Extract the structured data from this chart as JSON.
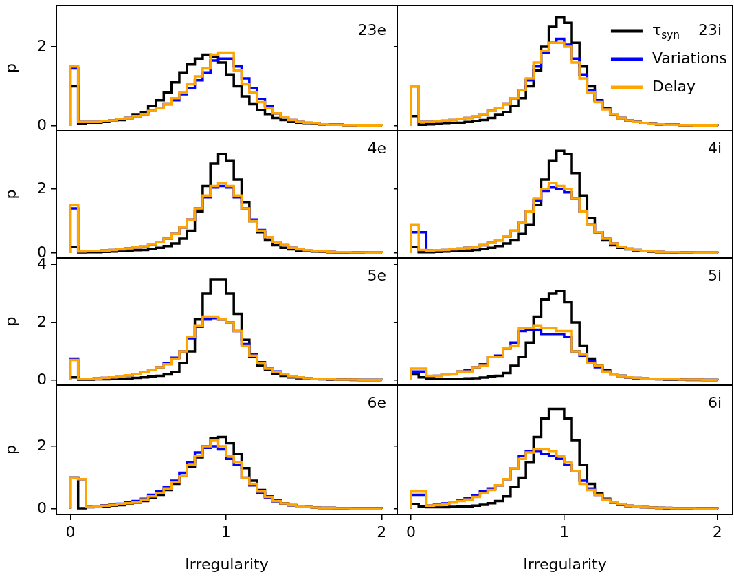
{
  "chart_data": [
    {
      "type": "histogram",
      "annotations": [
        "23e"
      ],
      "ylabel": "p",
      "tick_labels": "y",
      "legend": false,
      "xlim": [
        -0.09,
        2.1
      ],
      "ylim": [
        -0.12,
        3.04
      ],
      "yticks": [
        0,
        2
      ],
      "bins": [
        0,
        0.05,
        0.1,
        0.15,
        0.2,
        0.25,
        0.3,
        0.35,
        0.4,
        0.45,
        0.5,
        0.55,
        0.6,
        0.65,
        0.7,
        0.75,
        0.8,
        0.85,
        0.9,
        0.95,
        1,
        1.05,
        1.1,
        1.15,
        1.2,
        1.25,
        1.3,
        1.35,
        1.4,
        1.45,
        1.5,
        1.55,
        1.6,
        1.65,
        1.7,
        1.75,
        1.8,
        1.85,
        1.9,
        1.95,
        2
      ],
      "series": [
        {
          "color": "#000000",
          "values": [
            1.0,
            0.05,
            0.07,
            0.08,
            0.1,
            0.12,
            0.15,
            0.2,
            0.28,
            0.35,
            0.5,
            0.65,
            0.85,
            1.1,
            1.35,
            1.55,
            1.7,
            1.8,
            1.75,
            1.6,
            1.3,
            1.0,
            0.75,
            0.55,
            0.4,
            0.3,
            0.2,
            0.15,
            0.1,
            0.08,
            0.06,
            0.05,
            0.04,
            0.03,
            0.03,
            0.02,
            0.02,
            0.01,
            0.01,
            0.01
          ]
        },
        {
          "color": "#0000ff",
          "values": [
            1.45,
            0.1,
            0.1,
            0.1,
            0.12,
            0.14,
            0.17,
            0.2,
            0.25,
            0.3,
            0.38,
            0.45,
            0.55,
            0.65,
            0.8,
            0.95,
            1.15,
            1.35,
            1.65,
            1.7,
            1.7,
            1.5,
            1.2,
            0.95,
            0.68,
            0.5,
            0.32,
            0.22,
            0.15,
            0.1,
            0.08,
            0.06,
            0.04,
            0.03,
            0.03,
            0.02,
            0.02,
            0.01,
            0.01,
            0.01
          ]
        },
        {
          "color": "#ffa500",
          "values": [
            1.5,
            0.1,
            0.1,
            0.1,
            0.12,
            0.14,
            0.17,
            0.2,
            0.25,
            0.3,
            0.38,
            0.45,
            0.55,
            0.7,
            0.85,
            1.05,
            1.25,
            1.45,
            1.8,
            1.85,
            1.85,
            1.4,
            1.05,
            0.85,
            0.6,
            0.45,
            0.32,
            0.22,
            0.15,
            0.1,
            0.08,
            0.06,
            0.04,
            0.03,
            0.03,
            0.02,
            0.02,
            0.01,
            0.01,
            0.01
          ]
        }
      ]
    },
    {
      "type": "histogram",
      "annotations": [
        "23i"
      ],
      "tick_labels": false,
      "legend": "top right",
      "xlim": [
        -0.09,
        2.1
      ],
      "ylim": [
        -0.12,
        3.04
      ],
      "yticks": [
        0,
        2
      ],
      "bins": [
        0,
        0.05,
        0.1,
        0.15,
        0.2,
        0.25,
        0.3,
        0.35,
        0.4,
        0.45,
        0.5,
        0.55,
        0.6,
        0.65,
        0.7,
        0.75,
        0.8,
        0.85,
        0.9,
        0.95,
        1,
        1.05,
        1.1,
        1.15,
        1.2,
        1.25,
        1.3,
        1.35,
        1.4,
        1.45,
        1.5,
        1.55,
        1.6,
        1.65,
        1.7,
        1.75,
        1.8,
        1.85,
        1.9,
        1.95,
        2
      ],
      "series": [
        {
          "name": "τ$_{syn}$",
          "color": "#000000",
          "values": [
            0.25,
            0.03,
            0.04,
            0.05,
            0.06,
            0.07,
            0.08,
            0.1,
            0.12,
            0.15,
            0.2,
            0.28,
            0.35,
            0.5,
            0.7,
            1.0,
            1.4,
            2.0,
            2.5,
            2.75,
            2.6,
            2.1,
            1.5,
            1.0,
            0.65,
            0.45,
            0.3,
            0.2,
            0.14,
            0.1,
            0.07,
            0.05,
            0.04,
            0.03,
            0.03,
            0.02,
            0.02,
            0.01,
            0.01,
            0.01
          ]
        },
        {
          "name": "Variations",
          "color": "#0000ff",
          "values": [
            1.0,
            0.1,
            0.1,
            0.11,
            0.13,
            0.15,
            0.17,
            0.2,
            0.25,
            0.3,
            0.38,
            0.45,
            0.55,
            0.7,
            0.9,
            1.15,
            1.5,
            1.85,
            2.1,
            2.2,
            2.05,
            1.7,
            1.3,
            0.9,
            0.62,
            0.43,
            0.3,
            0.2,
            0.14,
            0.1,
            0.07,
            0.05,
            0.04,
            0.03,
            0.03,
            0.02,
            0.02,
            0.01,
            0.01,
            0.01
          ]
        },
        {
          "name": "Delay",
          "color": "#ffa500",
          "values": [
            1.0,
            0.1,
            0.1,
            0.11,
            0.13,
            0.15,
            0.17,
            0.2,
            0.25,
            0.3,
            0.38,
            0.45,
            0.55,
            0.7,
            0.9,
            1.2,
            1.6,
            1.9,
            2.1,
            2.1,
            2.0,
            1.6,
            1.2,
            0.85,
            0.6,
            0.42,
            0.3,
            0.2,
            0.14,
            0.1,
            0.07,
            0.05,
            0.04,
            0.03,
            0.03,
            0.02,
            0.02,
            0.01,
            0.01,
            0.01
          ]
        }
      ]
    },
    {
      "type": "histogram",
      "annotations": [
        "4e"
      ],
      "ylabel": "p",
      "tick_labels": "y",
      "legend": false,
      "xlim": [
        -0.09,
        2.1
      ],
      "ylim": [
        -0.15,
        3.83
      ],
      "yticks": [
        0,
        2
      ],
      "bins": [
        0,
        0.05,
        0.1,
        0.15,
        0.2,
        0.25,
        0.3,
        0.35,
        0.4,
        0.45,
        0.5,
        0.55,
        0.6,
        0.65,
        0.7,
        0.75,
        0.8,
        0.85,
        0.9,
        0.95,
        1,
        1.05,
        1.1,
        1.15,
        1.2,
        1.25,
        1.3,
        1.35,
        1.4,
        1.45,
        1.5,
        1.55,
        1.6,
        1.65,
        1.7,
        1.75,
        1.8,
        1.85,
        1.9,
        1.95,
        2
      ],
      "series": [
        {
          "color": "#000000",
          "values": [
            0.2,
            0.02,
            0.03,
            0.03,
            0.04,
            0.05,
            0.06,
            0.07,
            0.09,
            0.1,
            0.13,
            0.17,
            0.22,
            0.3,
            0.45,
            0.7,
            1.3,
            2.1,
            2.8,
            3.1,
            2.9,
            2.3,
            1.6,
            1.0,
            0.65,
            0.4,
            0.25,
            0.17,
            0.12,
            0.08,
            0.06,
            0.05,
            0.04,
            0.03,
            0.02,
            0.02,
            0.02,
            0.01,
            0.01,
            0.01
          ]
        },
        {
          "color": "#0000ff",
          "values": [
            1.4,
            0.05,
            0.06,
            0.07,
            0.08,
            0.1,
            0.12,
            0.15,
            0.18,
            0.22,
            0.28,
            0.35,
            0.45,
            0.6,
            0.8,
            1.05,
            1.4,
            1.75,
            2.05,
            2.1,
            2.05,
            1.75,
            1.4,
            1.05,
            0.72,
            0.5,
            0.35,
            0.25,
            0.17,
            0.12,
            0.09,
            0.07,
            0.05,
            0.04,
            0.03,
            0.03,
            0.02,
            0.02,
            0.01,
            0.01
          ]
        },
        {
          "color": "#ffa500",
          "values": [
            1.5,
            0.05,
            0.06,
            0.07,
            0.08,
            0.1,
            0.12,
            0.15,
            0.18,
            0.22,
            0.28,
            0.35,
            0.45,
            0.6,
            0.8,
            1.05,
            1.4,
            1.8,
            2.1,
            2.2,
            2.1,
            1.8,
            1.4,
            1.0,
            0.7,
            0.5,
            0.35,
            0.25,
            0.17,
            0.12,
            0.09,
            0.07,
            0.05,
            0.04,
            0.03,
            0.03,
            0.02,
            0.02,
            0.01,
            0.01
          ]
        }
      ]
    },
    {
      "type": "histogram",
      "annotations": [
        "4i"
      ],
      "tick_labels": false,
      "legend": false,
      "xlim": [
        -0.09,
        2.1
      ],
      "ylim": [
        -0.15,
        3.83
      ],
      "yticks": [
        0,
        2
      ],
      "bins": [
        0,
        0.05,
        0.1,
        0.15,
        0.2,
        0.25,
        0.3,
        0.35,
        0.4,
        0.45,
        0.5,
        0.55,
        0.6,
        0.65,
        0.7,
        0.75,
        0.8,
        0.85,
        0.9,
        0.95,
        1,
        1.05,
        1.1,
        1.15,
        1.2,
        1.25,
        1.3,
        1.35,
        1.4,
        1.45,
        1.5,
        1.55,
        1.6,
        1.65,
        1.7,
        1.75,
        1.8,
        1.85,
        1.9,
        1.95,
        2
      ],
      "series": [
        {
          "color": "#000000",
          "values": [
            0.2,
            0.03,
            0.03,
            0.04,
            0.05,
            0.06,
            0.07,
            0.08,
            0.1,
            0.13,
            0.17,
            0.22,
            0.3,
            0.4,
            0.6,
            0.9,
            1.5,
            2.3,
            2.9,
            3.2,
            3.1,
            2.5,
            1.8,
            1.1,
            0.65,
            0.4,
            0.25,
            0.17,
            0.12,
            0.08,
            0.06,
            0.04,
            0.03,
            0.03,
            0.02,
            0.02,
            0.01,
            0.01,
            0.01,
            0.01
          ]
        },
        {
          "color": "#0000ff",
          "values": [
            0.65,
            0.65,
            0.08,
            0.09,
            0.1,
            0.12,
            0.14,
            0.17,
            0.2,
            0.25,
            0.32,
            0.4,
            0.52,
            0.7,
            0.95,
            1.3,
            1.65,
            1.95,
            2.05,
            2.0,
            1.9,
            1.7,
            1.3,
            0.9,
            0.65,
            0.45,
            0.3,
            0.2,
            0.14,
            0.1,
            0.07,
            0.05,
            0.04,
            0.03,
            0.03,
            0.02,
            0.02,
            0.01,
            0.01,
            0.01
          ]
        },
        {
          "color": "#ffa500",
          "values": [
            0.9,
            0.1,
            0.08,
            0.09,
            0.1,
            0.12,
            0.14,
            0.17,
            0.2,
            0.25,
            0.32,
            0.4,
            0.52,
            0.7,
            0.95,
            1.3,
            1.7,
            2.0,
            2.2,
            2.1,
            2.0,
            1.7,
            1.3,
            0.9,
            0.65,
            0.45,
            0.3,
            0.2,
            0.14,
            0.1,
            0.07,
            0.05,
            0.04,
            0.03,
            0.03,
            0.02,
            0.02,
            0.01,
            0.01,
            0.01
          ]
        }
      ]
    },
    {
      "type": "histogram",
      "annotations": [
        "5e"
      ],
      "ylabel": "p",
      "tick_labels": "y",
      "legend": false,
      "xlim": [
        -0.09,
        2.1
      ],
      "ylim": [
        -0.17,
        4.24
      ],
      "yticks": [
        0,
        2,
        4
      ],
      "bins": [
        0,
        0.05,
        0.1,
        0.15,
        0.2,
        0.25,
        0.3,
        0.35,
        0.4,
        0.45,
        0.5,
        0.55,
        0.6,
        0.65,
        0.7,
        0.75,
        0.8,
        0.85,
        0.9,
        0.95,
        1,
        1.05,
        1.1,
        1.15,
        1.2,
        1.25,
        1.3,
        1.35,
        1.4,
        1.45,
        1.5,
        1.55,
        1.6,
        1.65,
        1.7,
        1.75,
        1.8,
        1.85,
        1.9,
        1.95,
        2
      ],
      "series": [
        {
          "color": "#000000",
          "values": [
            0.1,
            0.02,
            0.02,
            0.03,
            0.03,
            0.04,
            0.05,
            0.06,
            0.08,
            0.1,
            0.12,
            0.15,
            0.2,
            0.28,
            0.6,
            1.0,
            2.1,
            3.0,
            3.5,
            3.5,
            3.0,
            2.3,
            1.4,
            0.8,
            0.5,
            0.35,
            0.22,
            0.15,
            0.1,
            0.07,
            0.05,
            0.04,
            0.03,
            0.02,
            0.02,
            0.02,
            0.01,
            0.01,
            0.01,
            0.01
          ]
        },
        {
          "color": "#0000ff",
          "values": [
            0.75,
            0.05,
            0.05,
            0.06,
            0.08,
            0.1,
            0.13,
            0.17,
            0.22,
            0.28,
            0.35,
            0.45,
            0.58,
            0.78,
            1.0,
            1.45,
            1.85,
            2.1,
            2.15,
            2.1,
            2.0,
            1.7,
            1.25,
            0.9,
            0.62,
            0.42,
            0.3,
            0.2,
            0.14,
            0.1,
            0.07,
            0.05,
            0.04,
            0.03,
            0.02,
            0.02,
            0.02,
            0.01,
            0.01,
            0.01
          ]
        },
        {
          "color": "#ffa500",
          "values": [
            0.7,
            0.05,
            0.05,
            0.06,
            0.08,
            0.1,
            0.13,
            0.17,
            0.22,
            0.28,
            0.35,
            0.45,
            0.55,
            0.75,
            1.0,
            1.5,
            1.9,
            2.2,
            2.2,
            2.1,
            2.0,
            1.7,
            1.2,
            0.85,
            0.6,
            0.4,
            0.28,
            0.2,
            0.14,
            0.1,
            0.07,
            0.05,
            0.04,
            0.03,
            0.02,
            0.02,
            0.02,
            0.01,
            0.01,
            0.01
          ]
        }
      ]
    },
    {
      "type": "histogram",
      "annotations": [
        "5i"
      ],
      "tick_labels": false,
      "legend": false,
      "xlim": [
        -0.09,
        2.1
      ],
      "ylim": [
        -0.17,
        4.24
      ],
      "yticks": [
        0,
        2,
        4
      ],
      "bins": [
        0,
        0.05,
        0.1,
        0.15,
        0.2,
        0.25,
        0.3,
        0.35,
        0.4,
        0.45,
        0.5,
        0.55,
        0.6,
        0.65,
        0.7,
        0.75,
        0.8,
        0.85,
        0.9,
        0.95,
        1,
        1.05,
        1.1,
        1.15,
        1.2,
        1.25,
        1.3,
        1.35,
        1.4,
        1.45,
        1.5,
        1.55,
        1.6,
        1.65,
        1.7,
        1.75,
        1.8,
        1.85,
        1.9,
        1.95,
        2
      ],
      "series": [
        {
          "color": "#000000",
          "values": [
            0.2,
            0.1,
            0.05,
            0.04,
            0.04,
            0.04,
            0.05,
            0.06,
            0.07,
            0.09,
            0.12,
            0.15,
            0.25,
            0.5,
            0.8,
            1.3,
            2.2,
            2.8,
            3.0,
            3.1,
            2.7,
            2.0,
            1.2,
            0.75,
            0.5,
            0.35,
            0.22,
            0.15,
            0.1,
            0.07,
            0.05,
            0.04,
            0.03,
            0.02,
            0.02,
            0.02,
            0.01,
            0.01,
            0.01,
            0.01
          ]
        },
        {
          "color": "#0000ff",
          "values": [
            0.3,
            0.3,
            0.12,
            0.15,
            0.2,
            0.22,
            0.3,
            0.35,
            0.45,
            0.55,
            0.8,
            0.85,
            1.1,
            1.3,
            1.7,
            1.75,
            1.75,
            1.6,
            1.6,
            1.6,
            1.5,
            1.0,
            0.85,
            0.65,
            0.45,
            0.3,
            0.2,
            0.15,
            0.1,
            0.08,
            0.06,
            0.05,
            0.04,
            0.03,
            0.03,
            0.02,
            0.02,
            0.02,
            0.01,
            0.01
          ]
        },
        {
          "color": "#ffa500",
          "values": [
            0.4,
            0.4,
            0.15,
            0.15,
            0.2,
            0.2,
            0.3,
            0.3,
            0.45,
            0.5,
            0.8,
            0.8,
            1.1,
            1.2,
            1.8,
            1.8,
            1.9,
            1.8,
            1.8,
            1.7,
            1.7,
            1.0,
            0.9,
            0.6,
            0.5,
            0.3,
            0.2,
            0.15,
            0.1,
            0.08,
            0.06,
            0.05,
            0.04,
            0.03,
            0.03,
            0.02,
            0.02,
            0.02,
            0.01,
            0.01
          ]
        }
      ]
    },
    {
      "type": "histogram",
      "annotations": [
        "6e"
      ],
      "ylabel": "p",
      "xlabel": "Irregularity",
      "legend": false,
      "xlim": [
        -0.09,
        2.1
      ],
      "xticks": [
        0,
        1,
        2
      ],
      "ylim": [
        -0.18,
        3.96
      ],
      "yticks": [
        0,
        2
      ],
      "bins": [
        0,
        0.05,
        0.1,
        0.15,
        0.2,
        0.25,
        0.3,
        0.35,
        0.4,
        0.45,
        0.5,
        0.55,
        0.6,
        0.65,
        0.7,
        0.75,
        0.8,
        0.85,
        0.9,
        0.95,
        1,
        1.05,
        1.1,
        1.15,
        1.2,
        1.25,
        1.3,
        1.35,
        1.4,
        1.45,
        1.5,
        1.55,
        1.6,
        1.65,
        1.7,
        1.75,
        1.8,
        1.85,
        1.9,
        1.95,
        2
      ],
      "series": [
        {
          "color": "#000000",
          "values": [
            1.0,
            0.02,
            0.05,
            0.06,
            0.08,
            0.1,
            0.12,
            0.15,
            0.2,
            0.25,
            0.35,
            0.45,
            0.6,
            0.8,
            1.05,
            1.35,
            1.65,
            2.0,
            2.25,
            2.3,
            2.1,
            1.75,
            1.3,
            0.9,
            0.6,
            0.4,
            0.27,
            0.18,
            0.12,
            0.08,
            0.06,
            0.04,
            0.03,
            0.03,
            0.02,
            0.02,
            0.01,
            0.01,
            0.01,
            0.01
          ]
        },
        {
          "color": "#0000ff",
          "values": [
            1.0,
            0.95,
            0.07,
            0.09,
            0.11,
            0.13,
            0.16,
            0.2,
            0.25,
            0.32,
            0.45,
            0.55,
            0.7,
            0.9,
            1.15,
            1.5,
            1.8,
            1.95,
            2.0,
            1.9,
            1.6,
            1.4,
            1.0,
            0.75,
            0.5,
            0.35,
            0.24,
            0.16,
            0.11,
            0.08,
            0.06,
            0.04,
            0.03,
            0.03,
            0.02,
            0.02,
            0.01,
            0.01,
            0.01,
            0.01
          ]
        },
        {
          "color": "#ffa500",
          "values": [
            1.0,
            0.95,
            0.06,
            0.08,
            0.1,
            0.12,
            0.15,
            0.18,
            0.22,
            0.3,
            0.4,
            0.5,
            0.65,
            0.85,
            1.05,
            1.4,
            1.7,
            2.0,
            2.2,
            2.0,
            1.7,
            1.5,
            1.0,
            0.8,
            0.55,
            0.38,
            0.25,
            0.17,
            0.12,
            0.08,
            0.06,
            0.04,
            0.03,
            0.03,
            0.02,
            0.02,
            0.01,
            0.01,
            0.01,
            0.01
          ]
        }
      ]
    },
    {
      "type": "histogram",
      "annotations": [
        "6i"
      ],
      "xlabel": "Irregularity",
      "tick_labels": "x",
      "legend": false,
      "xlim": [
        -0.09,
        2.1
      ],
      "xticks": [
        0,
        1,
        2
      ],
      "ylim": [
        -0.18,
        3.96
      ],
      "yticks": [
        0,
        2
      ],
      "bins": [
        0,
        0.05,
        0.1,
        0.15,
        0.2,
        0.25,
        0.3,
        0.35,
        0.4,
        0.45,
        0.5,
        0.55,
        0.6,
        0.65,
        0.7,
        0.75,
        0.8,
        0.85,
        0.9,
        0.95,
        1,
        1.05,
        1.1,
        1.15,
        1.2,
        1.25,
        1.3,
        1.35,
        1.4,
        1.45,
        1.5,
        1.55,
        1.6,
        1.65,
        1.7,
        1.75,
        1.8,
        1.85,
        1.9,
        1.95,
        2
      ],
      "series": [
        {
          "color": "#000000",
          "values": [
            0.15,
            0.08,
            0.05,
            0.05,
            0.05,
            0.06,
            0.07,
            0.08,
            0.1,
            0.13,
            0.18,
            0.25,
            0.4,
            0.7,
            1.0,
            1.5,
            2.3,
            2.9,
            3.2,
            3.2,
            2.9,
            2.2,
            1.4,
            0.8,
            0.5,
            0.32,
            0.2,
            0.13,
            0.09,
            0.06,
            0.05,
            0.04,
            0.03,
            0.02,
            0.02,
            0.02,
            0.01,
            0.01,
            0.01,
            0.01
          ]
        },
        {
          "color": "#0000ff",
          "values": [
            0.45,
            0.45,
            0.1,
            0.13,
            0.17,
            0.22,
            0.28,
            0.35,
            0.42,
            0.55,
            0.65,
            0.75,
            0.95,
            1.3,
            1.7,
            1.85,
            1.85,
            1.75,
            1.7,
            1.6,
            1.4,
            1.2,
            0.9,
            0.65,
            0.45,
            0.3,
            0.2,
            0.14,
            0.1,
            0.07,
            0.05,
            0.04,
            0.03,
            0.03,
            0.02,
            0.02,
            0.02,
            0.01,
            0.01,
            0.01
          ]
        },
        {
          "color": "#ffa500",
          "values": [
            0.55,
            0.55,
            0.1,
            0.12,
            0.15,
            0.2,
            0.25,
            0.3,
            0.38,
            0.5,
            0.6,
            0.75,
            0.95,
            1.3,
            1.6,
            1.8,
            1.9,
            1.9,
            1.85,
            1.7,
            1.5,
            1.2,
            0.8,
            0.6,
            0.45,
            0.3,
            0.2,
            0.14,
            0.1,
            0.07,
            0.05,
            0.04,
            0.03,
            0.03,
            0.02,
            0.02,
            0.02,
            0.01,
            0.01,
            0.01
          ]
        }
      ]
    }
  ]
}
